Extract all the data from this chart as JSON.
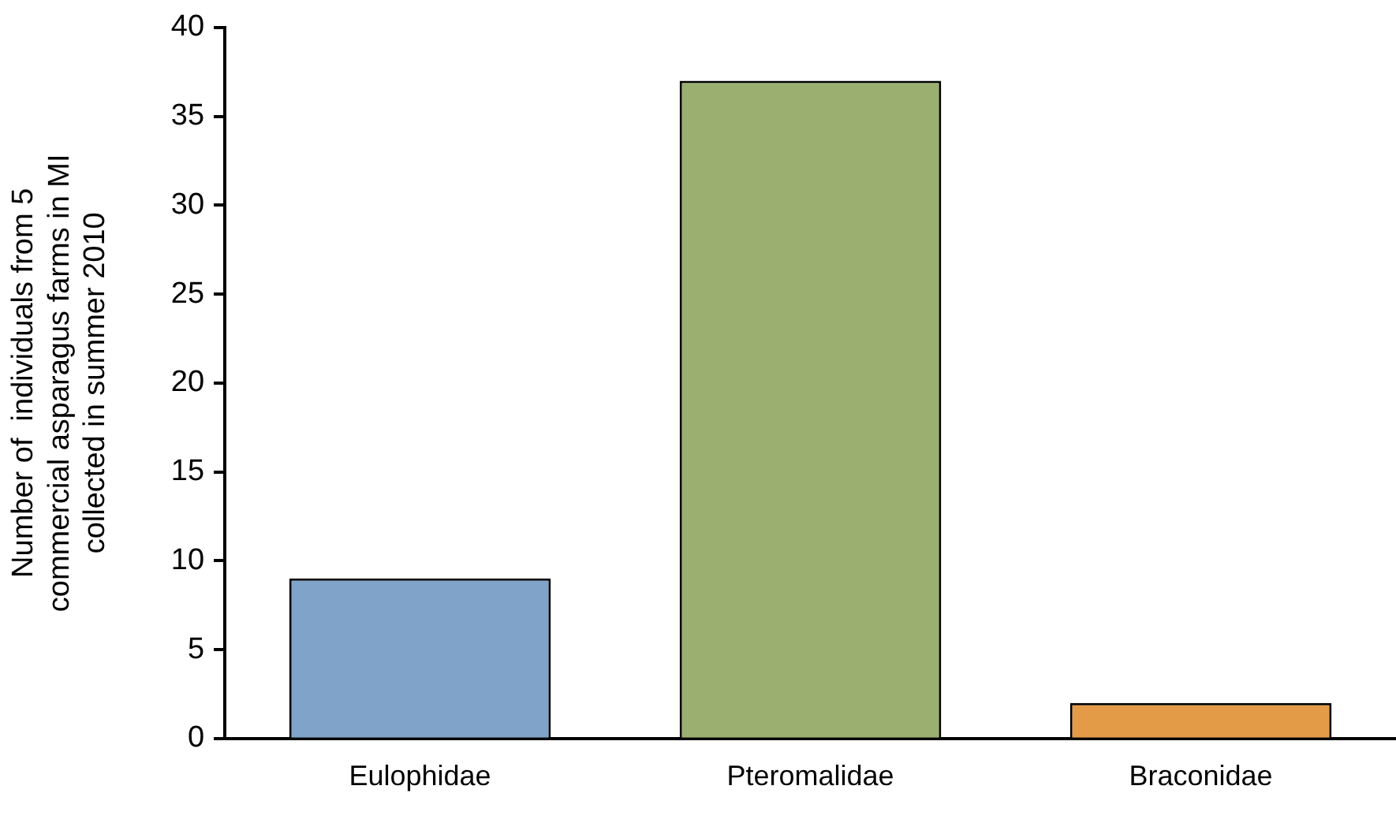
{
  "chart_data": {
    "type": "bar",
    "ylabel": "Number of  individuals from 5\ncommercial asparagus farms in MI\ncollected in summer 2010",
    "categories": [
      "Eulophidae",
      "Pteromalidae",
      "Braconidae"
    ],
    "values": [
      9,
      37,
      2
    ],
    "colors": [
      "#7fa3c9",
      "#9bb070",
      "#e49b48"
    ],
    "ylim": [
      0,
      40
    ],
    "yticks": [
      0,
      5,
      10,
      15,
      20,
      25,
      30,
      35,
      40
    ],
    "grid": false,
    "legend": false
  }
}
